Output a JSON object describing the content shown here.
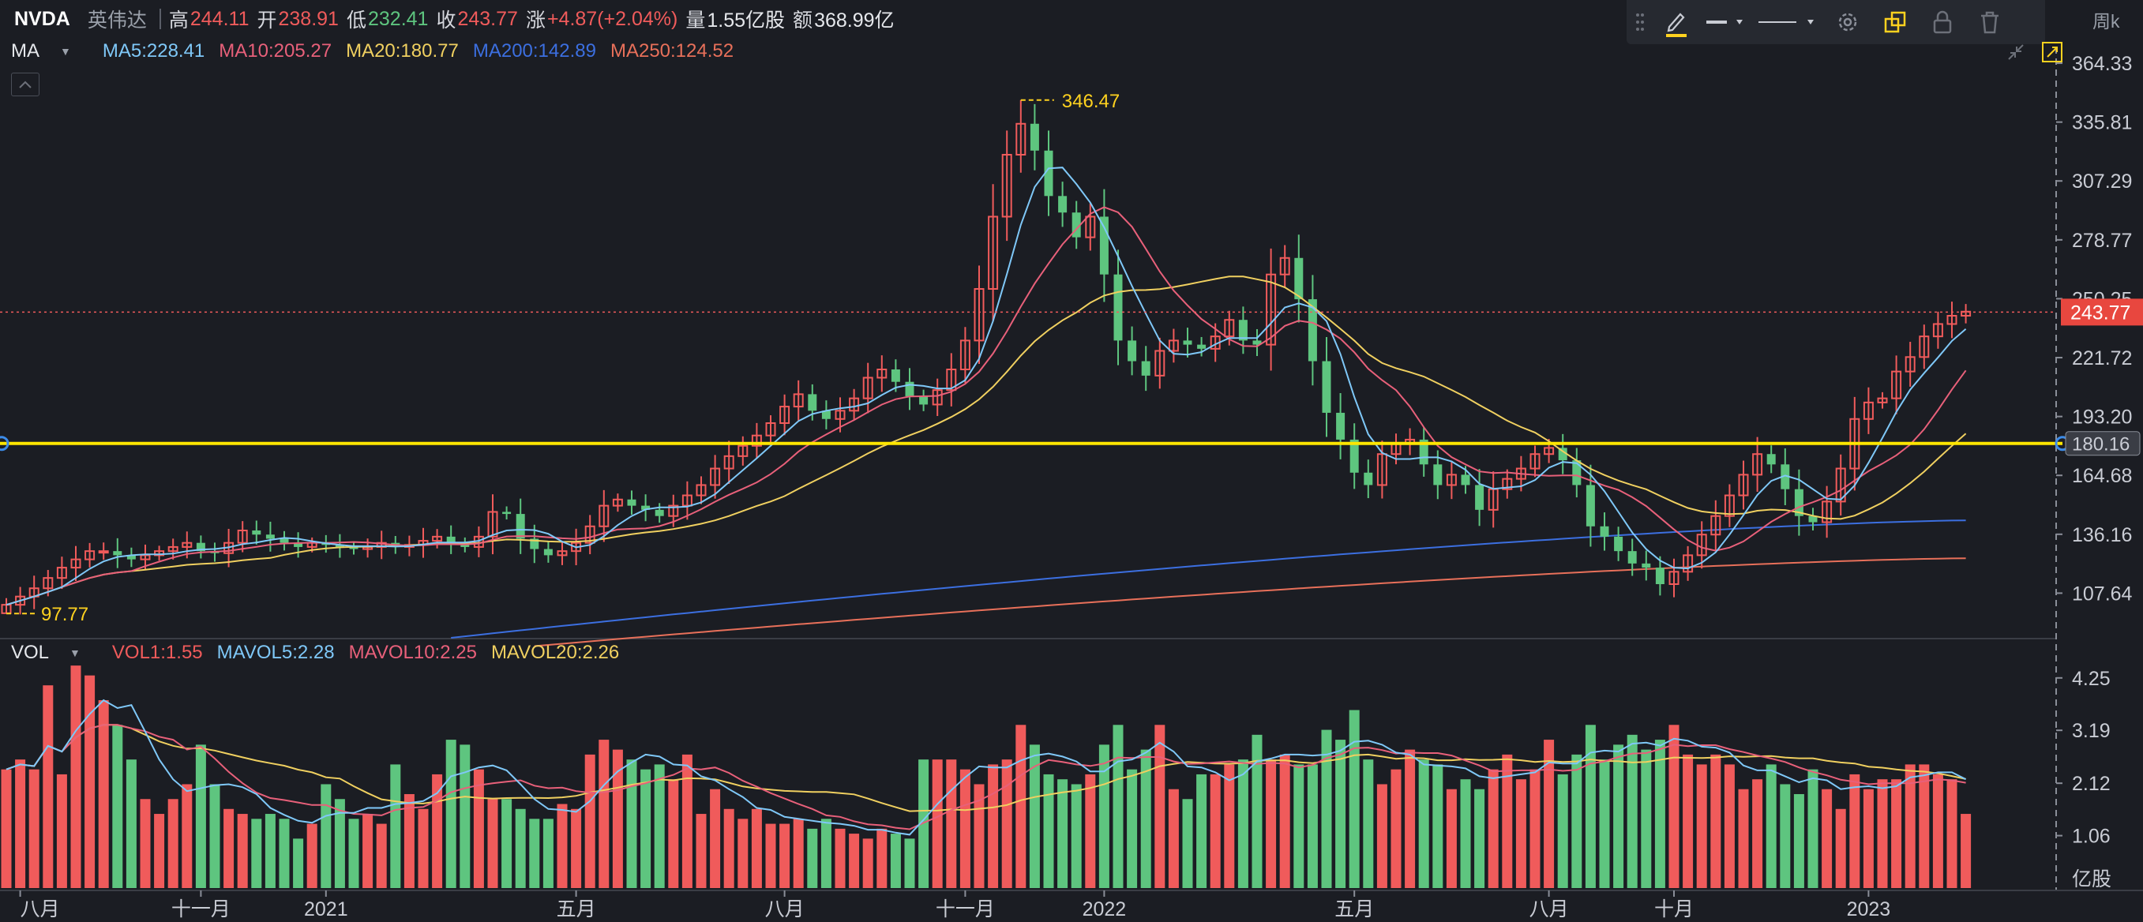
{
  "header": {
    "symbol": "NVDA",
    "name": "英伟达",
    "high_label": "高",
    "high": "244.11",
    "open_label": "开",
    "open": "238.91",
    "low_label": "低",
    "low": "232.41",
    "close_label": "收",
    "close": "243.77",
    "change_label": "涨",
    "change": "+4.87(+2.04%)",
    "volume_label": "量",
    "volume": "1.55亿股",
    "amount_label": "额",
    "amount": "368.99亿"
  },
  "period": {
    "label": "周k"
  },
  "toolbar": {
    "items": [
      "drag-handle-icon",
      "pencil-icon",
      "line-style-icon",
      "line-width-icon",
      "settings-icon",
      "copy-icon",
      "lock-icon",
      "trash-icon"
    ]
  },
  "ma_legend": {
    "selector": "MA",
    "items": [
      {
        "text": "MA5:228.41",
        "color": "#7fc8f8"
      },
      {
        "text": "MA10:205.27",
        "color": "#e8607a"
      },
      {
        "text": "MA20:180.77",
        "color": "#f0d060"
      },
      {
        "text": "MA200:142.89",
        "color": "#3c6fe0"
      },
      {
        "text": "MA250:124.52",
        "color": "#e8705a"
      }
    ]
  },
  "vol_legend": {
    "selector": "VOL",
    "items": [
      {
        "text": "VOL1:1.55",
        "color": "#f05b5b"
      },
      {
        "text": "MAVOL5:2.28",
        "color": "#7fc8f8"
      },
      {
        "text": "MAVOL10:2.25",
        "color": "#e8607a"
      },
      {
        "text": "MAVOL20:2.26",
        "color": "#f0d060"
      }
    ]
  },
  "chart_data": {
    "type": "candlestick",
    "price_axis": {
      "ticks": [
        "364.33",
        "335.81",
        "307.29",
        "278.77",
        "250.25",
        "221.72",
        "193.20",
        "164.68",
        "136.16",
        "107.64"
      ],
      "range": [
        86,
        372
      ]
    },
    "volume_axis": {
      "ticks": [
        "4.25",
        "3.19",
        "2.12",
        "1.06"
      ],
      "unit": "亿股",
      "range": [
        0,
        4.55
      ]
    },
    "x_labels": [
      "八月",
      "十一月",
      "2021",
      "五月",
      "八月",
      "十一月",
      "2022",
      "五月",
      "八月",
      "十月",
      "2023"
    ],
    "x_label_positions": [
      1,
      14,
      23,
      41,
      56,
      69,
      79,
      97,
      111,
      120,
      134
    ],
    "annotations": {
      "max": {
        "label": "346.47",
        "value": 346.47,
        "index": 73
      },
      "min": {
        "label": "97.77",
        "value": 97.77,
        "index": 0
      },
      "last_price": {
        "label": "243.77",
        "value": 243.77
      },
      "horizontal_line": {
        "label": "180.16",
        "value": 180.16,
        "color": "#ffe600"
      }
    },
    "colors": {
      "up": "#f05b5b",
      "down": "#5ec57f",
      "background": "#1b1d23"
    },
    "close": [
      102,
      106,
      110,
      115,
      120,
      124,
      128,
      128,
      126,
      124,
      126,
      128,
      130,
      132,
      128,
      127,
      132,
      138,
      136,
      134,
      132,
      130,
      132,
      131,
      130,
      129,
      130,
      132,
      130,
      131,
      133,
      135,
      132,
      130,
      135,
      147,
      146,
      134,
      129,
      126,
      128,
      132,
      140,
      150,
      153,
      150,
      148,
      145,
      150,
      155,
      160,
      168,
      174,
      179,
      184,
      190,
      198,
      204,
      196,
      192,
      196,
      202,
      212,
      216,
      210,
      203,
      199,
      206,
      216,
      230,
      255,
      290,
      320,
      335,
      322,
      300,
      292,
      280,
      290,
      262,
      230,
      220,
      213,
      225,
      230,
      228,
      226,
      232,
      240,
      230,
      228,
      262,
      270,
      250,
      220,
      195,
      182,
      166,
      160,
      175,
      180,
      182,
      170,
      160,
      165,
      160,
      148,
      158,
      163,
      168,
      175,
      178,
      172,
      160,
      140,
      135,
      128,
      122,
      120,
      112,
      118,
      126,
      136,
      145,
      155,
      165,
      175,
      170,
      158,
      145,
      142,
      152,
      168,
      192,
      200,
      202,
      215,
      222,
      232,
      238,
      242,
      244
    ],
    "volume": [
      2.4,
      2.6,
      2.4,
      4.1,
      2.3,
      4.5,
      4.3,
      3.8,
      3.3,
      2.6,
      1.8,
      1.5,
      1.8,
      2.1,
      2.9,
      2.1,
      1.6,
      1.5,
      1.4,
      1.5,
      1.4,
      1.0,
      1.3,
      2.1,
      1.8,
      1.4,
      1.5,
      1.3,
      2.5,
      1.9,
      1.6,
      2.3,
      3.0,
      2.9,
      2.4,
      1.8,
      1.8,
      1.6,
      1.4,
      1.4,
      1.7,
      1.6,
      2.7,
      3.0,
      2.8,
      2.6,
      2.4,
      2.5,
      2.2,
      2.7,
      1.5,
      2.0,
      1.6,
      1.4,
      1.6,
      1.3,
      1.3,
      1.4,
      1.2,
      1.4,
      1.2,
      1.1,
      1.0,
      1.2,
      1.1,
      1.0,
      2.6,
      2.6,
      2.6,
      2.4,
      2.1,
      2.5,
      2.6,
      3.3,
      2.9,
      2.3,
      2.2,
      2.1,
      2.3,
      2.9,
      3.3,
      2.4,
      2.8,
      3.3,
      2.0,
      1.8,
      2.3,
      2.3,
      2.5,
      2.6,
      3.1,
      2.6,
      2.7,
      2.5,
      2.5,
      3.2,
      3.0,
      3.6,
      2.6,
      2.1,
      2.4,
      2.8,
      2.6,
      2.5,
      2.0,
      2.2,
      2.0,
      2.4,
      2.7,
      2.2,
      2.4,
      3.0,
      2.3,
      2.7,
      3.3,
      2.6,
      2.9,
      3.1,
      2.8,
      3.0,
      3.3,
      2.7,
      2.5,
      2.7,
      2.5,
      2.0,
      2.2,
      2.5,
      2.1,
      1.9,
      2.4,
      2.0,
      1.6,
      2.3,
      2.0,
      2.2,
      2.2,
      2.5,
      2.5,
      2.3,
      2.2,
      1.5
    ]
  }
}
